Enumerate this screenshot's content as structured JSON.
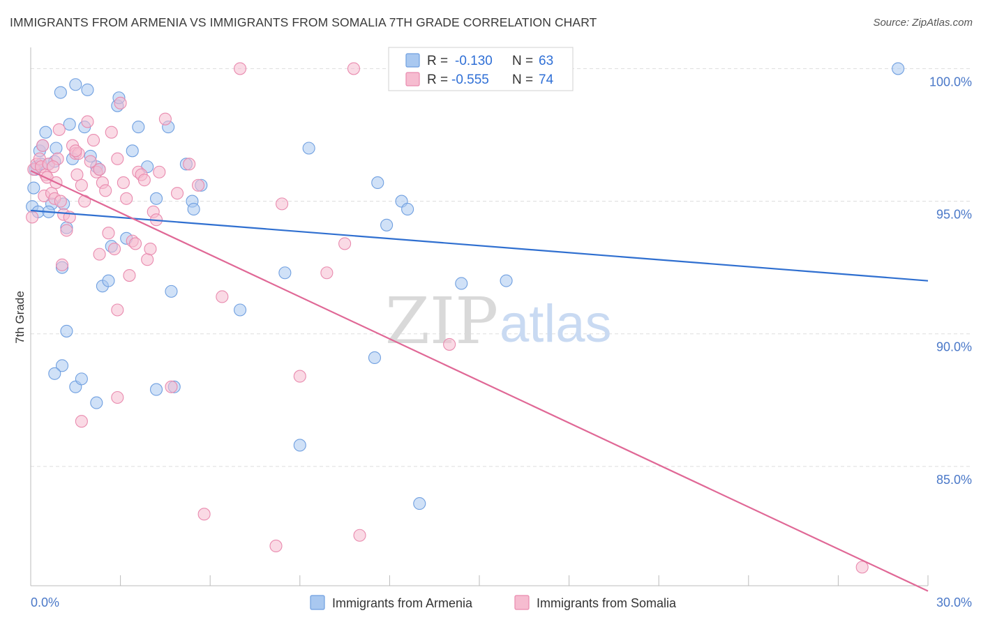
{
  "header": {
    "title": "IMMIGRANTS FROM ARMENIA VS IMMIGRANTS FROM SOMALIA 7TH GRADE CORRELATION CHART",
    "source": "Source: ZipAtlas.com"
  },
  "watermark": {
    "zip": "ZIP",
    "atlas": "atlas"
  },
  "legend_box": {
    "rows": [
      {
        "r_label": "R =",
        "r_value": "-0.130",
        "n_label": "N =",
        "n_value": "63"
      },
      {
        "r_label": "R =",
        "r_value": "-0.555",
        "n_label": "N =",
        "n_value": "74"
      }
    ]
  },
  "bottom_legend": {
    "armenia": "Immigrants from Armenia",
    "somalia": "Immigrants from Somalia"
  },
  "colors": {
    "armenia_fill": "#a9c8f0",
    "armenia_stroke": "#6f9fe0",
    "armenia_line": "#2f6fd0",
    "somalia_fill": "#f6bcd0",
    "somalia_stroke": "#e98aae",
    "somalia_line": "#e06896",
    "tick_text": "#4a78c8",
    "grid": "#dddddd"
  },
  "chart_data": {
    "type": "scatter",
    "title": "IMMIGRANTS FROM ARMENIA VS IMMIGRANTS FROM SOMALIA 7TH GRADE CORRELATION CHART",
    "xlabel": "",
    "ylabel": "7th Grade",
    "xlim": [
      0,
      30
    ],
    "ylim": [
      80.5,
      100.8
    ],
    "x_tick_labels": [
      "0.0%",
      "30.0%"
    ],
    "y_ticks": [
      85,
      90,
      95,
      100
    ],
    "y_tick_labels": [
      "85.0%",
      "90.0%",
      "95.0%",
      "100.0%"
    ],
    "grid": true,
    "legend_position": "top-center",
    "series": [
      {
        "name": "Immigrants from Armenia",
        "r": -0.13,
        "n": 63,
        "trend": {
          "x": [
            0,
            30
          ],
          "y": [
            94.65,
            92.0
          ]
        },
        "points": [
          [
            0.05,
            94.8
          ],
          [
            0.1,
            95.5
          ],
          [
            0.2,
            96.3
          ],
          [
            0.25,
            94.6
          ],
          [
            0.3,
            96.9
          ],
          [
            0.35,
            96.4
          ],
          [
            0.4,
            97.1
          ],
          [
            0.5,
            97.6
          ],
          [
            0.6,
            96.4
          ],
          [
            0.7,
            94.9
          ],
          [
            0.8,
            96.5
          ],
          [
            0.85,
            97.0
          ],
          [
            0.6,
            94.6
          ],
          [
            1.0,
            99.1
          ],
          [
            1.05,
            92.5
          ],
          [
            1.1,
            94.9
          ],
          [
            1.2,
            94.0
          ],
          [
            1.3,
            97.9
          ],
          [
            1.4,
            96.6
          ],
          [
            1.5,
            99.4
          ],
          [
            1.2,
            90.1
          ],
          [
            1.05,
            88.8
          ],
          [
            0.8,
            88.5
          ],
          [
            1.5,
            88.0
          ],
          [
            1.7,
            88.3
          ],
          [
            1.8,
            97.8
          ],
          [
            1.9,
            99.2
          ],
          [
            2.0,
            96.7
          ],
          [
            2.2,
            96.3
          ],
          [
            2.3,
            96.2
          ],
          [
            2.2,
            87.4
          ],
          [
            2.4,
            91.8
          ],
          [
            2.6,
            92.0
          ],
          [
            2.7,
            93.3
          ],
          [
            2.9,
            98.6
          ],
          [
            2.95,
            98.9
          ],
          [
            3.2,
            93.6
          ],
          [
            3.4,
            96.9
          ],
          [
            3.6,
            97.8
          ],
          [
            3.9,
            96.3
          ],
          [
            4.2,
            95.1
          ],
          [
            4.6,
            97.8
          ],
          [
            4.7,
            91.6
          ],
          [
            4.2,
            87.9
          ],
          [
            4.8,
            88.0
          ],
          [
            5.2,
            96.4
          ],
          [
            5.4,
            95.0
          ],
          [
            5.45,
            94.7
          ],
          [
            5.7,
            95.6
          ],
          [
            7.0,
            90.9
          ],
          [
            8.5,
            92.3
          ],
          [
            9.0,
            85.8
          ],
          [
            9.3,
            97.0
          ],
          [
            11.5,
            89.1
          ],
          [
            11.6,
            95.7
          ],
          [
            11.9,
            94.1
          ],
          [
            12.4,
            95.0
          ],
          [
            12.6,
            94.7
          ],
          [
            13.0,
            83.6
          ],
          [
            14.4,
            91.9
          ],
          [
            15.9,
            92.0
          ],
          [
            29.0,
            100.0
          ],
          [
            0.15,
            96.2
          ]
        ]
      },
      {
        "name": "Immigrants from Somalia",
        "r": -0.555,
        "n": 74,
        "trend": {
          "x": [
            0,
            30
          ],
          "y": [
            96.15,
            80.3
          ]
        },
        "points": [
          [
            0.05,
            94.4
          ],
          [
            0.1,
            96.2
          ],
          [
            0.2,
            96.4
          ],
          [
            0.3,
            96.6
          ],
          [
            0.35,
            96.3
          ],
          [
            0.4,
            97.1
          ],
          [
            0.45,
            95.2
          ],
          [
            0.5,
            96.0
          ],
          [
            0.55,
            95.9
          ],
          [
            0.6,
            96.4
          ],
          [
            0.7,
            95.3
          ],
          [
            0.8,
            95.1
          ],
          [
            0.85,
            95.7
          ],
          [
            0.9,
            96.6
          ],
          [
            0.95,
            97.7
          ],
          [
            1.0,
            95.0
          ],
          [
            1.05,
            92.6
          ],
          [
            1.1,
            94.5
          ],
          [
            1.2,
            93.9
          ],
          [
            1.3,
            94.4
          ],
          [
            1.4,
            97.1
          ],
          [
            1.5,
            96.8
          ],
          [
            1.55,
            96.0
          ],
          [
            1.6,
            96.8
          ],
          [
            1.7,
            95.6
          ],
          [
            1.8,
            95.0
          ],
          [
            1.9,
            98.0
          ],
          [
            2.0,
            96.5
          ],
          [
            2.1,
            97.3
          ],
          [
            2.2,
            96.1
          ],
          [
            2.3,
            96.2
          ],
          [
            2.4,
            95.7
          ],
          [
            2.5,
            95.4
          ],
          [
            2.6,
            93.8
          ],
          [
            2.7,
            97.6
          ],
          [
            2.8,
            93.2
          ],
          [
            2.9,
            96.6
          ],
          [
            3.0,
            98.7
          ],
          [
            3.1,
            95.7
          ],
          [
            3.2,
            95.1
          ],
          [
            3.3,
            92.2
          ],
          [
            3.4,
            93.5
          ],
          [
            3.5,
            93.4
          ],
          [
            3.6,
            96.1
          ],
          [
            3.7,
            96.0
          ],
          [
            3.8,
            95.8
          ],
          [
            3.9,
            92.8
          ],
          [
            4.0,
            93.2
          ],
          [
            4.1,
            94.6
          ],
          [
            4.2,
            94.3
          ],
          [
            4.3,
            96.1
          ],
          [
            4.5,
            98.1
          ],
          [
            4.7,
            88.0
          ],
          [
            4.9,
            95.3
          ],
          [
            5.3,
            96.4
          ],
          [
            5.6,
            95.6
          ],
          [
            5.8,
            83.2
          ],
          [
            6.4,
            91.4
          ],
          [
            7.0,
            100.0
          ],
          [
            8.2,
            82.0
          ],
          [
            8.4,
            94.9
          ],
          [
            9.0,
            88.4
          ],
          [
            9.9,
            92.3
          ],
          [
            10.5,
            93.4
          ],
          [
            10.8,
            100.0
          ],
          [
            11.0,
            82.4
          ],
          [
            14.0,
            89.6
          ],
          [
            27.8,
            81.2
          ],
          [
            2.9,
            90.9
          ],
          [
            2.9,
            87.6
          ],
          [
            1.7,
            86.7
          ],
          [
            2.3,
            93.0
          ],
          [
            1.5,
            96.9
          ],
          [
            0.75,
            96.3
          ]
        ]
      }
    ]
  }
}
